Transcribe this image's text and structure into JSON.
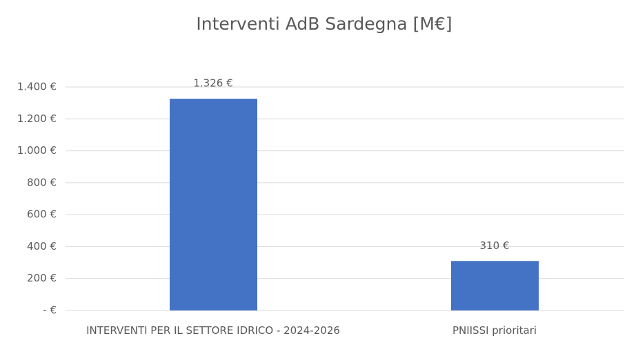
{
  "chart_data": {
    "type": "bar",
    "title": "Interventi AdB Sardegna [M€]",
    "categories": [
      "INTERVENTI PER IL SETTORE IDRICO - 2024-2026",
      "PNIISSI prioritari"
    ],
    "values": [
      1326,
      310
    ],
    "value_labels": [
      "1.326 €",
      "310 €"
    ],
    "color": "#4472c4",
    "ylim": [
      0,
      1400
    ],
    "yticks": [
      {
        "value": 0,
        "label": "-  €"
      },
      {
        "value": 200,
        "label": "200 €"
      },
      {
        "value": 400,
        "label": "400 €"
      },
      {
        "value": 600,
        "label": "600 €"
      },
      {
        "value": 800,
        "label": "800 €"
      },
      {
        "value": 1000,
        "label": "1.000 €"
      },
      {
        "value": 1200,
        "label": "1.200 €"
      },
      {
        "value": 1400,
        "label": "1.400 €"
      }
    ],
    "grid": true
  }
}
